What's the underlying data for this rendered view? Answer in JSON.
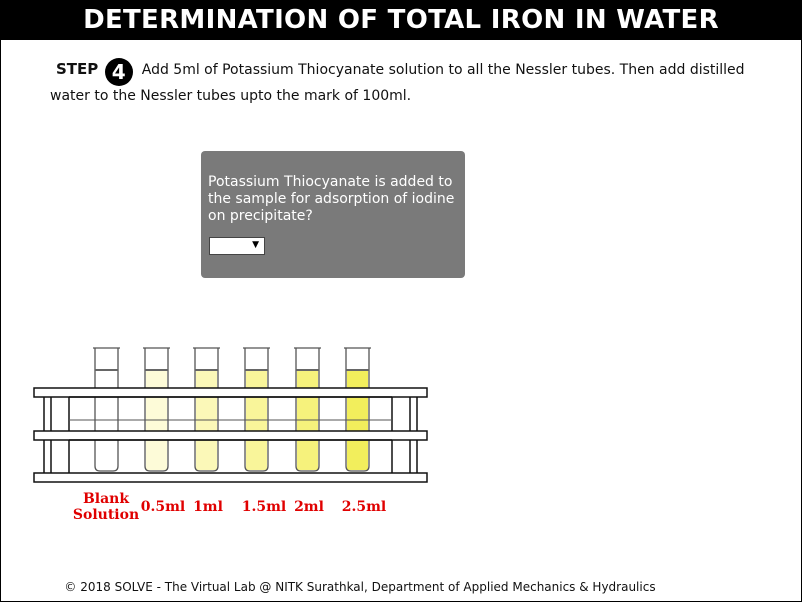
{
  "header": {
    "title": "DETERMINATION OF TOTAL IRON IN WATER"
  },
  "step": {
    "label": "STEP",
    "number": "4",
    "instruction": "Add 5ml of Potassium Thiocyanate solution to all the Nessler tubes. Then add distilled water to the Nessler tubes upto the mark of 100ml."
  },
  "quiz": {
    "question": "Potassium Thiocyanate is added to the sample for adsorption of iodine on precipitate?",
    "selected": "",
    "dropdown_icon": "triangle-down-icon"
  },
  "tubes": [
    {
      "label_line1": "Blank",
      "label_line2": "Solution",
      "color": "#ffffff"
    },
    {
      "label_line1": "0.5ml",
      "label_line2": "",
      "color": "#fdfbd8"
    },
    {
      "label_line1": "1ml",
      "label_line2": "",
      "color": "#fbf8b8"
    },
    {
      "label_line1": "1.5ml",
      "label_line2": "",
      "color": "#f9f59a"
    },
    {
      "label_line1": "2ml",
      "label_line2": "",
      "color": "#f6f27c"
    },
    {
      "label_line1": "2.5ml",
      "label_line2": "",
      "color": "#f2ee5c"
    }
  ],
  "colors": {
    "label_red": "#e00000",
    "quiz_bg": "#7a7a7a",
    "header_bg": "#000000"
  },
  "footer": {
    "text": "© 2018 SOLVE - The Virtual Lab @ NITK Surathkal, Department of Applied Mechanics & Hydraulics"
  }
}
